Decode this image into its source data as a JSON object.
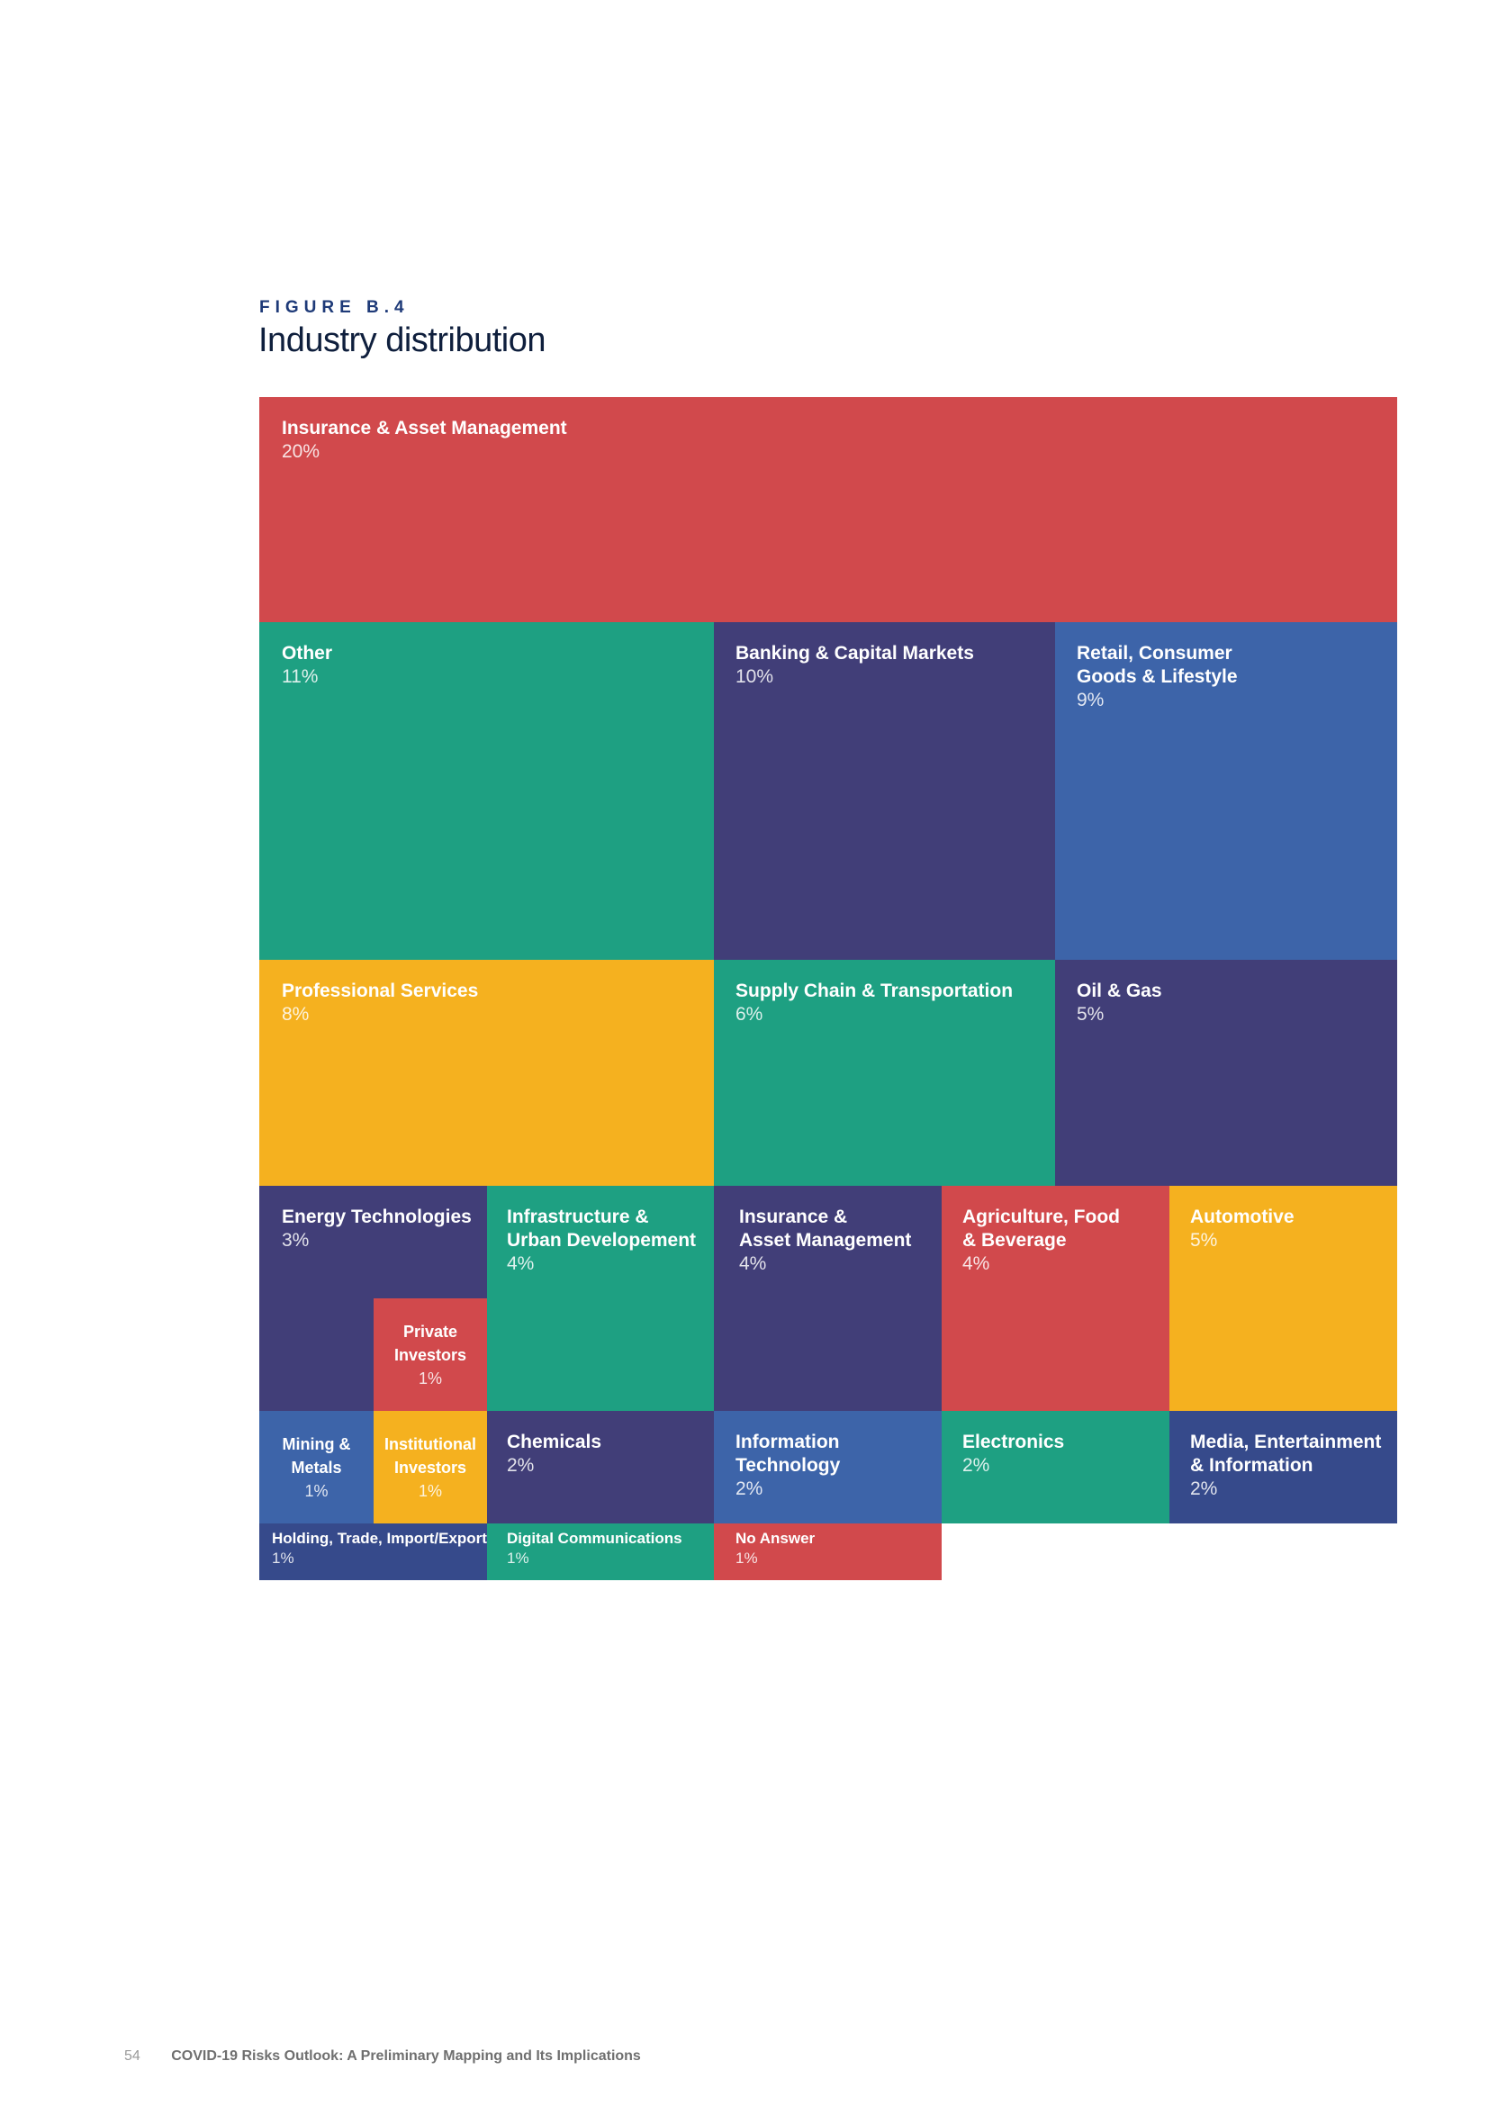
{
  "figure": {
    "label": "FIGURE B.4",
    "title": "Industry distribution"
  },
  "colors": {
    "red": "#d1494c",
    "green": "#1ea082",
    "indigo": "#413e78",
    "blue": "#3d64a9",
    "yellow": "#f5b11f",
    "navy": "#364a8b"
  },
  "chart_data": {
    "type": "treemap",
    "items": [
      {
        "name": "Insurance & Asset Management",
        "value": 20,
        "label": "20%",
        "color": "#d1494c"
      },
      {
        "name": "Other",
        "value": 11,
        "label": "11%",
        "color": "#1ea082"
      },
      {
        "name": "Banking & Capital Markets",
        "value": 10,
        "label": "10%",
        "color": "#413e78"
      },
      {
        "name": "Retail, Consumer\nGoods & Lifestyle",
        "value": 9,
        "label": "9%",
        "color": "#3d64a9"
      },
      {
        "name": "Professional Services",
        "value": 8,
        "label": "8%",
        "color": "#f5b11f"
      },
      {
        "name": "Supply Chain & Transportation",
        "value": 6,
        "label": "6%",
        "color": "#1ea082"
      },
      {
        "name": "Oil & Gas",
        "value": 5,
        "label": "5%",
        "color": "#413e78"
      },
      {
        "name": "Automotive",
        "value": 5,
        "label": "5%",
        "color": "#f5b11f"
      },
      {
        "name": "Energy Technologies",
        "value": 3,
        "label": "3%",
        "color": "#413e78"
      },
      {
        "name": "Private\nInvestors",
        "value": 1,
        "label": "1%",
        "color": "#d1494c"
      },
      {
        "name": "Infrastructure &\nUrban Developement",
        "value": 4,
        "label": "4%",
        "color": "#1ea082"
      },
      {
        "name": "Insurance &\nAsset Management",
        "value": 4,
        "label": "4%",
        "color": "#413e78"
      },
      {
        "name": "Agriculture, Food\n& Beverage",
        "value": 4,
        "label": "4%",
        "color": "#d1494c"
      },
      {
        "name": "Mining &\nMetals",
        "value": 1,
        "label": "1%",
        "color": "#3d64a9"
      },
      {
        "name": "Institutional\nInvestors",
        "value": 1,
        "label": "1%",
        "color": "#f5b11f"
      },
      {
        "name": "Chemicals",
        "value": 2,
        "label": "2%",
        "color": "#413e78"
      },
      {
        "name": "Information\nTechnology",
        "value": 2,
        "label": "2%",
        "color": "#3d64a9"
      },
      {
        "name": "Electronics",
        "value": 2,
        "label": "2%",
        "color": "#1ea082"
      },
      {
        "name": "Media, Entertainment\n& Information",
        "value": 2,
        "label": "2%",
        "color": "#364a8b"
      },
      {
        "name": "Holding, Trade, Import/Export",
        "value": 1,
        "label": "1%",
        "color": "#364a8b"
      },
      {
        "name": "Digital Communications",
        "value": 1,
        "label": "1%",
        "color": "#1ea082"
      },
      {
        "name": "No Answer",
        "value": 1,
        "label": "1%",
        "color": "#d1494c"
      }
    ]
  },
  "footer": {
    "page_number": "54",
    "document_title": "COVID-19 Risks Outlook: A Preliminary Mapping and Its Implications"
  }
}
